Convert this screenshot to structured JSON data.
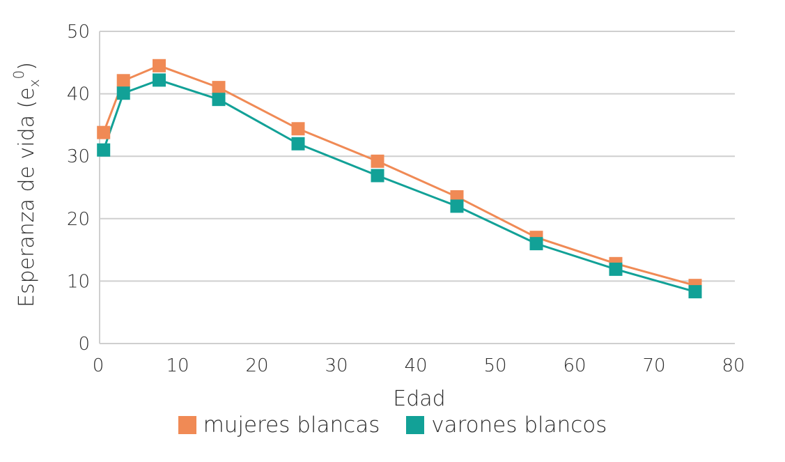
{
  "chart_data": {
    "type": "line",
    "xlabel": "Edad",
    "ylabel": "Esperanza de vida (ex0)",
    "ylabel_parts": {
      "main": "Esperanza de vida (e",
      "sub": "x",
      "sup": "0",
      "close": ")"
    },
    "xlim": [
      0,
      80
    ],
    "ylim": [
      0,
      50
    ],
    "xticks": [
      "0",
      "10",
      "20",
      "30",
      "40",
      "50",
      "60",
      "70",
      "80"
    ],
    "yticks": [
      "0",
      "10",
      "20",
      "30",
      "40",
      "50"
    ],
    "grid": true,
    "legend_position": "bottom",
    "series": [
      {
        "name": "mujeres blancas",
        "color": "#f08a55",
        "x": [
          0.5,
          3,
          7.5,
          15,
          25,
          35,
          45,
          55,
          65,
          75
        ],
        "y": [
          33.8,
          42.1,
          44.5,
          41.0,
          34.4,
          29.2,
          23.5,
          17.0,
          12.8,
          9.3
        ]
      },
      {
        "name": "varones blancos",
        "color": "#12a197",
        "x": [
          0.5,
          3,
          7.5,
          15,
          25,
          35,
          45,
          55,
          65,
          75
        ],
        "y": [
          31.0,
          40.1,
          42.2,
          39.1,
          32.0,
          26.9,
          22.0,
          16.0,
          11.9,
          8.3
        ]
      }
    ]
  }
}
